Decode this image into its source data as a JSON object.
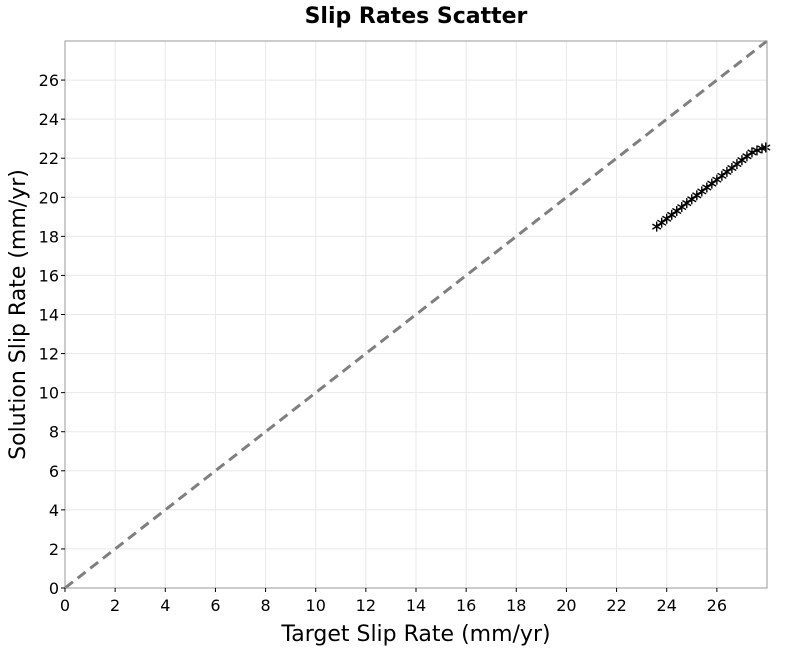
{
  "chart_data": {
    "type": "scatter",
    "title": "Slip Rates Scatter",
    "xlabel": "Target Slip Rate (mm/yr)",
    "ylabel": "Solution Slip Rate (mm/yr)",
    "xlim": [
      0,
      28
    ],
    "ylim": [
      0,
      28
    ],
    "xticks": [
      0,
      2,
      4,
      6,
      8,
      10,
      12,
      14,
      16,
      18,
      20,
      22,
      24,
      26
    ],
    "yticks": [
      0,
      2,
      4,
      6,
      8,
      10,
      12,
      14,
      16,
      18,
      20,
      22,
      24,
      26
    ],
    "grid": true,
    "reference_line": {
      "type": "y=x",
      "style": "dashed",
      "color": "#7f7f7f"
    },
    "marker": {
      "shape": "star",
      "color": "#000000"
    },
    "x": [
      23.6,
      23.8,
      24.0,
      24.2,
      24.4,
      24.6,
      24.8,
      25.0,
      25.2,
      25.4,
      25.6,
      25.8,
      26.0,
      26.2,
      26.4,
      26.6,
      26.8,
      27.0,
      27.2,
      27.4,
      27.6,
      27.8,
      27.95
    ],
    "y": [
      18.5,
      18.7,
      18.9,
      19.1,
      19.3,
      19.5,
      19.7,
      19.9,
      20.1,
      20.3,
      20.5,
      20.7,
      20.9,
      21.1,
      21.3,
      21.5,
      21.7,
      21.9,
      22.1,
      22.3,
      22.4,
      22.5,
      22.55
    ]
  }
}
